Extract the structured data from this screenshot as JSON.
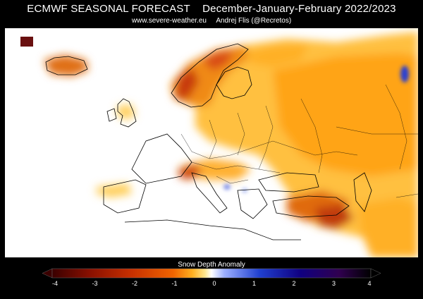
{
  "header": {
    "title_left": "ECMWF SEASONAL FORECAST",
    "title_right": "December-January-February 2022/2023",
    "source": "www.severe-weather.eu",
    "author": "Andrej Flis (@Recretos)"
  },
  "legend": {
    "title": "Snow Depth Anomaly",
    "ticks": [
      "-4",
      "-3",
      "-2",
      "-1",
      "0",
      "1",
      "2",
      "3",
      "4"
    ],
    "colors": [
      "#3a0000",
      "#8a1000",
      "#c83000",
      "#f06400",
      "#ffb020",
      "#ffe890",
      "#ffffff",
      "#9db0ff",
      "#2040d0",
      "#100080",
      "#300050",
      "#000000"
    ]
  },
  "map": {
    "region": "Europe",
    "palette": {
      "land_base": "#ffffff",
      "weak_negative": "#ffe08a",
      "moderate_negative": "#ffb52a",
      "strong_negative": "#f07a10",
      "very_strong_negative": "#c0300a",
      "extreme_negative": "#7a1010",
      "positive": "#2a3fd0"
    }
  }
}
